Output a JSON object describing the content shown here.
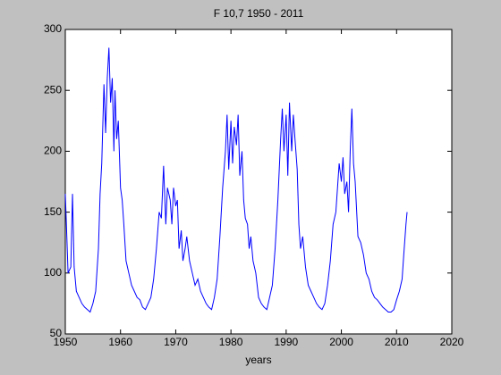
{
  "chart_data": {
    "type": "line",
    "title": "F 10,7  1950 - 2011",
    "xlabel": "years",
    "x": [
      1950,
      1950.2,
      1950.5,
      1951,
      1951.3,
      1951.6,
      1952,
      1952.5,
      1953,
      1953.5,
      1954,
      1954.5,
      1955,
      1955.5,
      1956,
      1956.3,
      1956.6,
      1957,
      1957.3,
      1957.6,
      1957.9,
      1958.2,
      1958.5,
      1958.8,
      1959,
      1959.3,
      1959.6,
      1960,
      1960.3,
      1960.6,
      1961,
      1961.5,
      1962,
      1962.5,
      1963,
      1963.5,
      1964,
      1964.5,
      1965,
      1965.5,
      1966,
      1966.5,
      1967,
      1967.4,
      1967.8,
      1968.2,
      1968.5,
      1969,
      1969.3,
      1969.6,
      1970,
      1970.3,
      1970.6,
      1971,
      1971.3,
      1971.7,
      1972,
      1972.5,
      1973,
      1973.5,
      1974,
      1974.5,
      1975,
      1975.5,
      1976,
      1976.5,
      1977,
      1977.5,
      1978,
      1978.5,
      1979,
      1979.3,
      1979.6,
      1980,
      1980.3,
      1980.6,
      1981,
      1981.3,
      1981.6,
      1982,
      1982.3,
      1982.6,
      1983,
      1983.3,
      1983.6,
      1984,
      1984.5,
      1985,
      1985.5,
      1986,
      1986.5,
      1987,
      1987.5,
      1988,
      1988.5,
      1989,
      1989.3,
      1989.6,
      1990,
      1990.3,
      1990.6,
      1991,
      1991.3,
      1991.6,
      1992,
      1992.3,
      1992.6,
      1993,
      1993.5,
      1994,
      1994.5,
      1995,
      1995.5,
      1996,
      1996.5,
      1997,
      1997.5,
      1998,
      1998.5,
      1999,
      1999.3,
      1999.6,
      2000,
      2000.3,
      2000.6,
      2001,
      2001.3,
      2001.6,
      2001.9,
      2002.2,
      2002.5,
      2003,
      2003.5,
      2004,
      2004.5,
      2005,
      2005.5,
      2006,
      2006.5,
      2007,
      2007.5,
      2008,
      2008.5,
      2009,
      2009.5,
      2010,
      2010.5,
      2011,
      2011.3,
      2011.7,
      2011.9
    ],
    "series": [
      {
        "color": "#0000ff",
        "values": [
          165,
          140,
          100,
          105,
          165,
          105,
          85,
          80,
          75,
          72,
          70,
          68,
          75,
          85,
          120,
          165,
          190,
          255,
          215,
          260,
          285,
          240,
          260,
          200,
          250,
          210,
          225,
          170,
          160,
          140,
          110,
          100,
          90,
          85,
          80,
          78,
          72,
          70,
          75,
          80,
          95,
          120,
          150,
          145,
          188,
          140,
          170,
          160,
          140,
          170,
          155,
          160,
          120,
          135,
          110,
          120,
          130,
          110,
          100,
          90,
          95,
          85,
          80,
          75,
          72,
          70,
          80,
          95,
          130,
          170,
          200,
          230,
          185,
          225,
          190,
          220,
          205,
          230,
          180,
          200,
          160,
          145,
          140,
          120,
          130,
          110,
          100,
          80,
          75,
          72,
          70,
          80,
          90,
          120,
          160,
          210,
          235,
          200,
          230,
          180,
          240,
          200,
          230,
          210,
          185,
          140,
          120,
          130,
          105,
          90,
          85,
          80,
          75,
          72,
          70,
          75,
          90,
          110,
          140,
          150,
          170,
          190,
          175,
          195,
          165,
          175,
          150,
          200,
          235,
          190,
          175,
          130,
          125,
          115,
          100,
          95,
          85,
          80,
          78,
          75,
          72,
          70,
          68,
          68,
          70,
          78,
          85,
          95,
          115,
          140,
          150
        ]
      }
    ],
    "xlim": [
      1950,
      2020
    ],
    "xticks": [
      1950,
      1960,
      1970,
      1980,
      1990,
      2000,
      2010,
      2020
    ],
    "ylim": [
      50,
      300
    ],
    "yticks": [
      50,
      100,
      150,
      200,
      250,
      300
    ]
  }
}
